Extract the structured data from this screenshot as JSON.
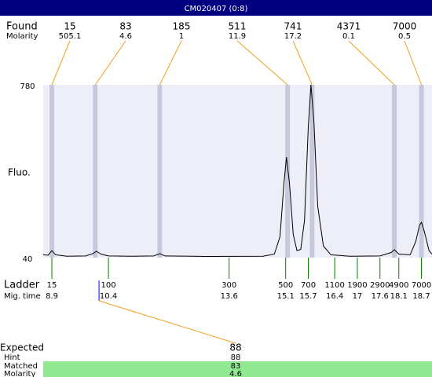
{
  "title": "CM020407 (0:8)",
  "found": {
    "label": "Found",
    "sublabel": "Molarity",
    "peaks": [
      {
        "size": 15,
        "molarity": 505.1,
        "time": 8.9
      },
      {
        "size": 83,
        "molarity": 4.6,
        "time": 10.05
      },
      {
        "size": 185,
        "molarity": 1,
        "time": 11.76
      },
      {
        "size": 511,
        "molarity": 11.9,
        "time": 15.15
      },
      {
        "size": 741,
        "molarity": 17.2,
        "time": 15.8
      },
      {
        "size": 4371,
        "molarity": 0.1,
        "time": 17.98
      },
      {
        "size": 7000,
        "molarity": 0.5,
        "time": 18.7
      }
    ]
  },
  "chart_data": {
    "type": "line",
    "y_label": "Fluo.",
    "ylim": [
      40,
      780
    ],
    "yticks": [
      40,
      780
    ],
    "xlim": [
      8.67,
      18.98
    ],
    "x": [
      8.67,
      8.8,
      8.9,
      9.0,
      9.3,
      9.8,
      10.0,
      10.08,
      10.2,
      10.4,
      11.0,
      11.6,
      11.76,
      11.9,
      13.0,
      14.5,
      14.8,
      14.95,
      15.05,
      15.12,
      15.2,
      15.3,
      15.4,
      15.5,
      15.6,
      15.7,
      15.77,
      15.85,
      15.95,
      16.1,
      16.3,
      16.8,
      17.6,
      17.9,
      17.98,
      18.1,
      18.4,
      18.55,
      18.65,
      18.7,
      18.78,
      18.9,
      18.98
    ],
    "values": [
      52,
      50,
      70,
      52,
      46,
      47,
      58,
      67,
      55,
      47,
      46,
      47,
      57,
      47,
      45,
      46,
      55,
      130,
      350,
      470,
      360,
      140,
      70,
      75,
      200,
      600,
      780,
      620,
      260,
      90,
      52,
      46,
      47,
      62,
      74,
      55,
      52,
      110,
      180,
      191,
      150,
      70,
      55
    ],
    "color": "#000000"
  },
  "ladder": {
    "label": "Ladder",
    "sublabel": "Mig. time",
    "peaks": [
      {
        "size": 15,
        "time": 8.9
      },
      {
        "size": 100,
        "time": 10.4
      },
      {
        "size": 300,
        "time": 13.6
      },
      {
        "size": 500,
        "time": 15.1
      },
      {
        "size": 700,
        "time": 15.7
      },
      {
        "size": 1100,
        "time": 16.4
      },
      {
        "size": 1900,
        "time": 17
      },
      {
        "size": 2900,
        "time": 17.6
      },
      {
        "size": 4900,
        "time": 18.1
      },
      {
        "size": 7000,
        "time": 18.7
      }
    ]
  },
  "expected": {
    "label": "Expected",
    "value": 88,
    "time": 10.15,
    "hint_label": "Hint",
    "hint": 88,
    "matched_label": "Matched",
    "matched": 83,
    "molarity_label": "Molarity",
    "molarity": 4.6
  }
}
